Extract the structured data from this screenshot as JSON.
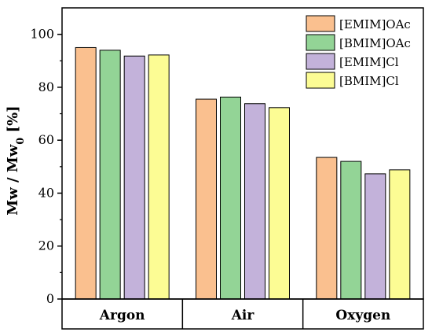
{
  "chart_data": {
    "type": "bar",
    "categories": [
      "Argon",
      "Air",
      "Oxygen"
    ],
    "series": [
      {
        "name": "[EMIM]OAc",
        "values": [
          95.0,
          75.5,
          53.5
        ],
        "color": "#FAC08F"
      },
      {
        "name": "[BMIM]OAc",
        "values": [
          94.0,
          76.3,
          52.0
        ],
        "color": "#93D496"
      },
      {
        "name": "[EMIM]Cl",
        "values": [
          91.8,
          73.8,
          47.3
        ],
        "color": "#C3B2DA"
      },
      {
        "name": "[BMIM]Cl",
        "values": [
          92.2,
          72.3,
          48.8
        ],
        "color": "#FCFC94"
      }
    ],
    "ylabel_main": "Mw / Mw",
    "ylabel_sub": "0",
    "ylabel_unit": " [%]",
    "xlabel": "",
    "ylim": [
      0,
      110
    ],
    "yticks": [
      "0",
      "20",
      "40",
      "60",
      "80",
      "100"
    ],
    "grid": false,
    "legend_position": "top-right"
  }
}
